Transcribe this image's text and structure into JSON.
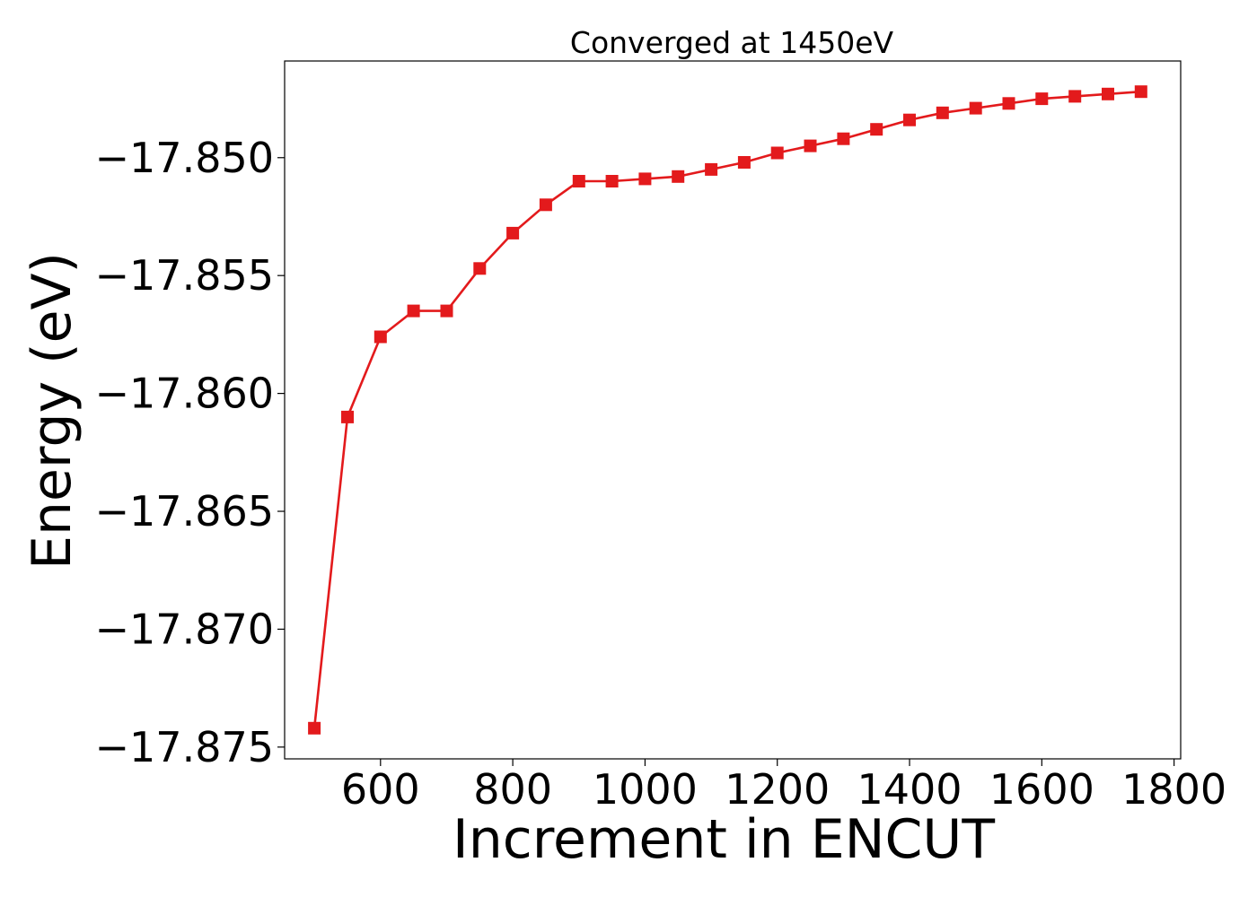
{
  "chart_data": {
    "type": "line",
    "title": "Converged at 1450eV",
    "xlabel": "Increment in ENCUT",
    "ylabel": "Energy (eV)",
    "xlim": [
      455,
      1810
    ],
    "ylim": [
      -17.8755,
      -17.8459
    ],
    "xticks": [
      600,
      800,
      1000,
      1200,
      1400,
      1600,
      1800
    ],
    "xtick_labels": [
      "600",
      "800",
      "1000",
      "1200",
      "1400",
      "1600",
      "1800"
    ],
    "yticks": [
      -17.85,
      -17.855,
      -17.86,
      -17.865,
      -17.87,
      -17.875
    ],
    "ytick_labels": [
      "−17.850",
      "−17.855",
      "−17.860",
      "−17.865",
      "−17.870",
      "−17.875"
    ],
    "grid": false,
    "series": [
      {
        "color": "#e31a1c",
        "marker": "square",
        "x": [
          500,
          550,
          600,
          650,
          700,
          750,
          800,
          850,
          900,
          950,
          1000,
          1050,
          1100,
          1150,
          1200,
          1250,
          1300,
          1350,
          1400,
          1450,
          1500,
          1550,
          1600,
          1650,
          1700,
          1750
        ],
        "y": [
          -17.8742,
          -17.861,
          -17.8576,
          -17.8565,
          -17.8565,
          -17.8547,
          -17.8532,
          -17.852,
          -17.851,
          -17.851,
          -17.8509,
          -17.8508,
          -17.8505,
          -17.8502,
          -17.8498,
          -17.8495,
          -17.8492,
          -17.8488,
          -17.8484,
          -17.8481,
          -17.8479,
          -17.8477,
          -17.8475,
          -17.8474,
          -17.8473,
          -17.8472
        ]
      }
    ]
  }
}
